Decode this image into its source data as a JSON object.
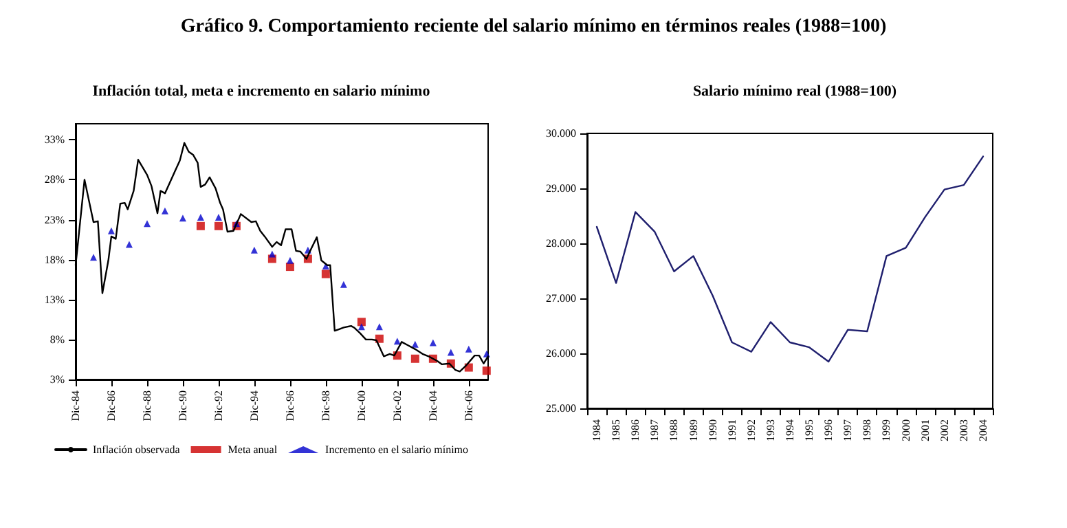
{
  "chart_data": [
    {
      "type": "line",
      "title": "Inflación total, meta e incremento en salario mínimo",
      "annotations": [
        "Gráfico 9. Comportamiento reciente del salario mínimo en términos reales (1988=100)"
      ],
      "xlim": [
        "1984-12",
        "2008-01"
      ],
      "xticks": [
        {
          "value": "1984-12",
          "label": "Dic-84"
        },
        {
          "value": "1986-12",
          "label": "Dic-86"
        },
        {
          "value": "1988-12",
          "label": "Dic-88"
        },
        {
          "value": "1990-12",
          "label": "Dic-90"
        },
        {
          "value": "1992-12",
          "label": "Dic-92"
        },
        {
          "value": "1994-12",
          "label": "Dic-94"
        },
        {
          "value": "1996-12",
          "label": "Dic-96"
        },
        {
          "value": "1998-12",
          "label": "Dic-98"
        },
        {
          "value": "2000-12",
          "label": "Dic-00"
        },
        {
          "value": "2002-12",
          "label": "Dic-02"
        },
        {
          "value": "2004-12",
          "label": "Dic-04"
        },
        {
          "value": "2006-12",
          "label": "Dic-06"
        }
      ],
      "ylim": [
        3,
        35
      ],
      "yticks": [
        {
          "value": 3,
          "label": "3%"
        },
        {
          "value": 8,
          "label": "8%"
        },
        {
          "value": 13,
          "label": "13%"
        },
        {
          "value": 18,
          "label": "18%"
        },
        {
          "value": 23,
          "label": "23%"
        },
        {
          "value": 28,
          "label": "28%"
        },
        {
          "value": 33,
          "label": "33%"
        }
      ],
      "grid": false,
      "legend": "bottom",
      "series": [
        {
          "name": "Inflación observada",
          "marker": "none",
          "color": "#000000",
          "x": [
            "1984-12",
            "1985-06",
            "1985-12",
            "1986-03",
            "1986-06",
            "1986-10",
            "1986-12",
            "1987-03",
            "1987-06",
            "1987-09",
            "1987-11",
            "1988-03",
            "1988-06",
            "1988-12",
            "1989-03",
            "1989-07",
            "1989-09",
            "1989-12",
            "1990-10",
            "1991-01",
            "1991-04",
            "1991-07",
            "1991-10",
            "1991-12",
            "1992-03",
            "1992-06",
            "1992-10",
            "1993-01",
            "1993-03",
            "1993-06",
            "1993-10",
            "1994-03",
            "1994-10",
            "1995-01",
            "1995-04",
            "1995-07",
            "1995-12",
            "1996-03",
            "1996-06",
            "1996-09",
            "1997-01",
            "1997-04",
            "1997-07",
            "1997-11",
            "1998-02",
            "1998-06",
            "1998-09",
            "1999-01",
            "1999-03",
            "1999-06",
            "1999-09",
            "1999-12",
            "2000-05",
            "2000-07",
            "2000-11",
            "2001-03",
            "2001-07",
            "2001-10",
            "2002-03",
            "2002-07",
            "2002-10",
            "2003-03",
            "2003-07",
            "2003-12",
            "2004-05",
            "2004-09",
            "2005-03",
            "2005-06",
            "2005-11",
            "2006-03",
            "2006-06",
            "2006-10",
            "2007-04",
            "2007-07",
            "2007-10",
            "2008-01"
          ],
          "values": [
            17.3,
            28.0,
            22.7,
            22.8,
            13.8,
            17.9,
            20.9,
            20.6,
            25.0,
            25.1,
            24.3,
            26.6,
            30.5,
            28.6,
            27.2,
            23.8,
            26.6,
            26.3,
            30.4,
            32.6,
            31.5,
            31.1,
            30.1,
            27.1,
            27.4,
            28.3,
            26.9,
            25.1,
            24.3,
            21.5,
            21.6,
            23.7,
            22.7,
            22.8,
            21.6,
            20.9,
            19.6,
            20.2,
            19.8,
            21.8,
            21.8,
            19.1,
            19.0,
            18.1,
            19.3,
            20.8,
            17.9,
            17.3,
            17.3,
            9.1,
            9.3,
            9.5,
            9.7,
            9.5,
            8.8,
            8.0,
            8.0,
            7.9,
            5.9,
            6.2,
            6.0,
            7.7,
            7.3,
            6.8,
            6.2,
            5.9,
            5.3,
            4.9,
            5.0,
            4.2,
            4.0,
            4.7,
            6.0,
            6.0,
            5.0,
            5.9
          ]
        },
        {
          "name": "Meta anual",
          "type": "scatter",
          "marker": "square",
          "color": "#cc0000",
          "x": [
            "1991-12",
            "1992-12",
            "1993-12",
            "1995-12",
            "1996-12",
            "1997-12",
            "1998-12",
            "2000-12",
            "2001-12",
            "2002-12",
            "2003-12",
            "2004-12",
            "2005-12",
            "2006-12",
            "2007-12"
          ],
          "values": [
            22.2,
            22.2,
            22.2,
            18.1,
            17.1,
            18.1,
            16.2,
            10.2,
            8.1,
            6.0,
            5.6,
            5.6,
            5.0,
            4.5,
            4.1
          ]
        },
        {
          "name": "Incremento en el salario mínimo",
          "type": "scatter",
          "marker": "triangle",
          "color": "#0000cc",
          "x": [
            "1985-12",
            "1986-12",
            "1987-12",
            "1988-12",
            "1989-12",
            "1990-12",
            "1991-12",
            "1992-12",
            "1993-12",
            "1994-12",
            "1995-12",
            "1996-12",
            "1997-12",
            "1998-12",
            "1999-12",
            "2000-12",
            "2001-12",
            "2002-12",
            "2003-12",
            "2004-12",
            "2005-12",
            "2006-12",
            "2007-12"
          ],
          "values": [
            18.3,
            21.6,
            19.9,
            22.5,
            24.1,
            23.2,
            23.3,
            23.3,
            22.5,
            19.2,
            18.7,
            17.9,
            19.2,
            17.2,
            14.9,
            9.6,
            9.6,
            7.8,
            7.4,
            7.6,
            6.4,
            6.8,
            6.2
          ]
        }
      ]
    },
    {
      "type": "line",
      "title": "Salario mínimo real (1988=100)",
      "marker": "none",
      "grid": false,
      "legend": false,
      "categories": [
        "1984",
        "1985",
        "1986",
        "1987",
        "1988",
        "1989",
        "1990",
        "1991",
        "1992",
        "1993",
        "1994",
        "1995",
        "1996",
        "1997",
        "1998",
        "1999",
        "2000",
        "2001",
        "2002",
        "2003",
        "2004"
      ],
      "ylim": [
        25000,
        30000
      ],
      "yticks": [
        {
          "value": 25000,
          "label": "25.000"
        },
        {
          "value": 26000,
          "label": "26.000"
        },
        {
          "value": 27000,
          "label": "27.000"
        },
        {
          "value": 28000,
          "label": "28.000"
        },
        {
          "value": 29000,
          "label": "29.000"
        },
        {
          "value": 30000,
          "label": "30.000"
        }
      ],
      "series": [
        {
          "color": "#1f1f6e",
          "values": [
            28300,
            27280,
            28570,
            28210,
            27490,
            27770,
            27050,
            26200,
            26030,
            26570,
            26200,
            26110,
            25850,
            26430,
            26400,
            27770,
            27920,
            28480,
            28980,
            29060,
            29580
          ]
        }
      ]
    }
  ]
}
